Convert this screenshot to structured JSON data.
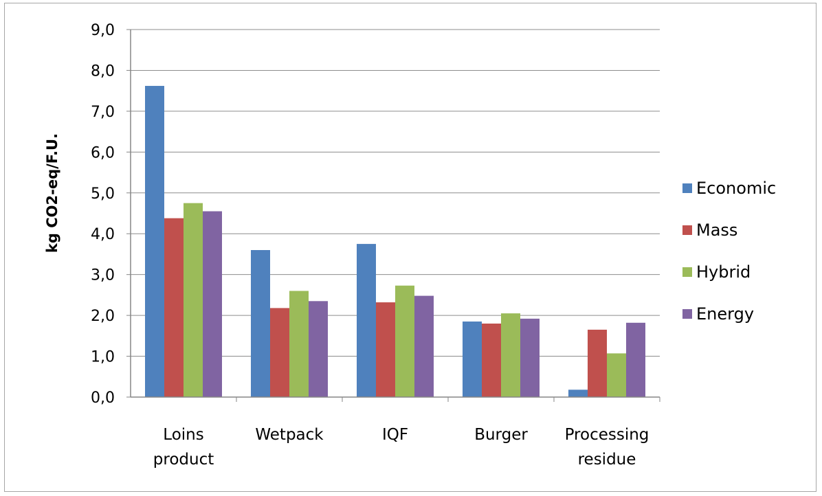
{
  "chart_data": {
    "type": "bar",
    "title": "",
    "xlabel": "",
    "ylabel": "kg CO2-eq/F.U.",
    "ylim": [
      0,
      9
    ],
    "ytick_step": 1,
    "ytick_labels": [
      "0,0",
      "1,0",
      "2,0",
      "3,0",
      "4,0",
      "5,0",
      "6,0",
      "7,0",
      "8,0",
      "9,0"
    ],
    "grid": "horizontal",
    "legend_position": "right",
    "categories": [
      [
        "Loins",
        "product"
      ],
      [
        "Wetpack"
      ],
      [
        "IQF"
      ],
      [
        "Burger"
      ],
      [
        "Processing",
        "residue"
      ]
    ],
    "series": [
      {
        "name": "Economic",
        "color": "#4f81bd",
        "values": [
          7.62,
          3.6,
          3.75,
          1.85,
          0.18
        ]
      },
      {
        "name": "Mass",
        "color": "#c0504d",
        "values": [
          4.38,
          2.18,
          2.32,
          1.8,
          1.65
        ]
      },
      {
        "name": "Hybrid",
        "color": "#9bbb59",
        "values": [
          4.75,
          2.6,
          2.73,
          2.05,
          1.07
        ]
      },
      {
        "name": "Energy",
        "color": "#8064a2",
        "values": [
          4.55,
          2.35,
          2.48,
          1.92,
          1.82
        ]
      }
    ]
  }
}
